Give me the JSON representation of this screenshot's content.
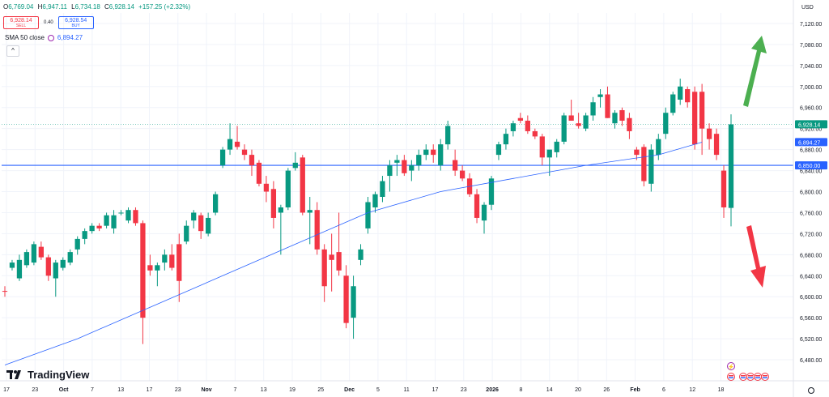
{
  "header": {
    "ohlc": [
      {
        "key": "O",
        "value": "6,769.04"
      },
      {
        "key": "H",
        "value": "6,947.11"
      },
      {
        "key": "L",
        "value": "6,734.18"
      },
      {
        "key": "C",
        "value": "6,928.14"
      },
      {
        "key": "",
        "value": "+157.25 (+2.32%)"
      }
    ],
    "sell_price": "6,928.14",
    "sell_label": "SELL",
    "spread": "0.40",
    "buy_price": "6,928.54",
    "buy_label": "BUY",
    "sma_label": "SMA 50 close",
    "sma_value": "6,894.27",
    "collapse_glyph": "^",
    "currency": "USD",
    "brand": "TradingView"
  },
  "colors": {
    "up": "#089981",
    "down": "#f23645",
    "sma": "#2962ff",
    "hline": "#2962ff",
    "arrow_up": "#4caf50",
    "arrow_down": "#f23645"
  },
  "chart_data": {
    "type": "candlestick",
    "ylim": [
      6440,
      7140
    ],
    "y_ticks": [
      "7,120.00",
      "7,080.00",
      "7,040.00",
      "7,000.00",
      "6,960.00",
      "6,920.00",
      "6,880.00",
      "6,840.00",
      "6,800.00",
      "6,760.00",
      "6,720.00",
      "6,680.00",
      "6,640.00",
      "6,600.00",
      "6,560.00",
      "6,520.00",
      "6,480.00"
    ],
    "x_tick_labels": [
      "17",
      "23",
      "Oct",
      "7",
      "13",
      "17",
      "23",
      "Nov",
      "7",
      "13",
      "19",
      "25",
      "Dec",
      "5",
      "11",
      "17",
      "23",
      "2026",
      "8",
      "14",
      "20",
      "26",
      "Feb",
      "6",
      "12",
      "18"
    ],
    "horizontal_line": 6850.0,
    "price_labels": [
      {
        "text": "6,928.14",
        "value": 6928.14,
        "color": "#089981"
      },
      {
        "text": "6,894.27",
        "value": 6894.27,
        "color": "#2962ff"
      },
      {
        "text": "6,850.00",
        "value": 6850.0,
        "color": "#2962ff"
      }
    ],
    "candles": [
      [
        6611,
        6620,
        6600,
        6610
      ],
      [
        6655,
        6670,
        6650,
        6665
      ],
      [
        6635,
        6680,
        6630,
        6670
      ],
      [
        6660,
        6690,
        6655,
        6685
      ],
      [
        6665,
        6705,
        6660,
        6700
      ],
      [
        6695,
        6705,
        6670,
        6675
      ],
      [
        6675,
        6680,
        6630,
        6640
      ],
      [
        6635,
        6670,
        6600,
        6665
      ],
      [
        6655,
        6675,
        6650,
        6670
      ],
      [
        6665,
        6690,
        6660,
        6685
      ],
      [
        6690,
        6715,
        6680,
        6710
      ],
      [
        6710,
        6730,
        6700,
        6725
      ],
      [
        6725,
        6740,
        6720,
        6735
      ],
      [
        6735,
        6740,
        6725,
        6730
      ],
      [
        6735,
        6760,
        6730,
        6755
      ],
      [
        6730,
        6765,
        6720,
        6755
      ],
      [
        6760,
        6765,
        6755,
        6760
      ],
      [
        6745,
        6770,
        6740,
        6765
      ],
      [
        6765,
        6770,
        6735,
        6740
      ],
      [
        6740,
        6745,
        6510,
        6560
      ],
      [
        6660,
        6680,
        6640,
        6650
      ],
      [
        6650,
        6665,
        6620,
        6660
      ],
      [
        6665,
        6690,
        6650,
        6680
      ],
      [
        6680,
        6700,
        6650,
        6655
      ],
      [
        6700,
        6720,
        6590,
        6630
      ],
      [
        6705,
        6745,
        6700,
        6735
      ],
      [
        6745,
        6765,
        6730,
        6760
      ],
      [
        6755,
        6760,
        6710,
        6725
      ],
      [
        6720,
        6760,
        6715,
        6750
      ],
      [
        6760,
        6800,
        6755,
        6795
      ],
      [
        6850,
        6885,
        6845,
        6880
      ],
      [
        6880,
        6930,
        6870,
        6900
      ],
      [
        6895,
        6925,
        6880,
        6885
      ],
      [
        6880,
        6890,
        6860,
        6870
      ],
      [
        6870,
        6880,
        6830,
        6850
      ],
      [
        6855,
        6860,
        6810,
        6815
      ],
      [
        6815,
        6830,
        6780,
        6800
      ],
      [
        6805,
        6820,
        6730,
        6750
      ],
      [
        6760,
        6775,
        6680,
        6770
      ],
      [
        6770,
        6845,
        6765,
        6840
      ],
      [
        6845,
        6875,
        6840,
        6855
      ],
      [
        6865,
        6870,
        6755,
        6760
      ],
      [
        6760,
        6790,
        6700,
        6765
      ],
      [
        6765,
        6780,
        6680,
        6690
      ],
      [
        6690,
        6700,
        6590,
        6620
      ],
      [
        6680,
        6720,
        6610,
        6670
      ],
      [
        6685,
        6760,
        6640,
        6650
      ],
      [
        6640,
        6660,
        6540,
        6550
      ],
      [
        6560,
        6640,
        6520,
        6620
      ],
      [
        6670,
        6700,
        6660,
        6690
      ],
      [
        6730,
        6790,
        6720,
        6780
      ],
      [
        6770,
        6800,
        6760,
        6795
      ],
      [
        6790,
        6830,
        6780,
        6820
      ],
      [
        6830,
        6860,
        6800,
        6850
      ],
      [
        6855,
        6870,
        6830,
        6860
      ],
      [
        6860,
        6870,
        6830,
        6835
      ],
      [
        6840,
        6860,
        6820,
        6850
      ],
      [
        6850,
        6880,
        6840,
        6870
      ],
      [
        6870,
        6890,
        6860,
        6880
      ],
      [
        6880,
        6890,
        6855,
        6870
      ],
      [
        6850,
        6900,
        6840,
        6890
      ],
      [
        6890,
        6935,
        6880,
        6925
      ],
      [
        6860,
        6880,
        6830,
        6840
      ],
      [
        6840,
        6850,
        6820,
        6825
      ],
      [
        6825,
        6835,
        6790,
        6795
      ],
      [
        6795,
        6805,
        6740,
        6750
      ],
      [
        6745,
        6780,
        6720,
        6775
      ],
      [
        6775,
        6830,
        6765,
        6825
      ],
      [
        6870,
        6895,
        6860,
        6890
      ],
      [
        6890,
        6920,
        6880,
        6910
      ],
      [
        6915,
        6935,
        6905,
        6930
      ],
      [
        6940,
        6950,
        6930,
        6935
      ],
      [
        6935,
        6945,
        6910,
        6915
      ],
      [
        6915,
        6920,
        6900,
        6905
      ],
      [
        6905,
        6910,
        6850,
        6865
      ],
      [
        6865,
        6875,
        6830,
        6880
      ],
      [
        6875,
        6900,
        6865,
        6895
      ],
      [
        6895,
        6950,
        6890,
        6945
      ],
      [
        6945,
        6975,
        6935,
        6935
      ],
      [
        6930,
        6950,
        6920,
        6925
      ],
      [
        6920,
        6950,
        6915,
        6945
      ],
      [
        6945,
        6980,
        6935,
        6970
      ],
      [
        6980,
        6995,
        6960,
        6985
      ],
      [
        6985,
        7000,
        6940,
        6940
      ],
      [
        6930,
        6955,
        6920,
        6950
      ],
      [
        6955,
        6960,
        6925,
        6935
      ],
      [
        6940,
        6950,
        6900,
        6915
      ],
      [
        6880,
        6885,
        6860,
        6870
      ],
      [
        6885,
        6890,
        6810,
        6820
      ],
      [
        6815,
        6890,
        6800,
        6880
      ],
      [
        6870,
        6910,
        6860,
        6900
      ],
      [
        6910,
        6960,
        6900,
        6950
      ],
      [
        6950,
        6990,
        6945,
        6985
      ],
      [
        6975,
        7015,
        6965,
        7000
      ],
      [
        6995,
        7000,
        6960,
        6970
      ],
      [
        6990,
        7000,
        6880,
        6890
      ],
      [
        6990,
        7005,
        6870,
        6920
      ],
      [
        6920,
        6930,
        6880,
        6900
      ],
      [
        6910,
        6920,
        6860,
        6870
      ],
      [
        6840,
        6850,
        6750,
        6770
      ],
      [
        6769,
        6947,
        6734,
        6928
      ]
    ],
    "sma50": [
      [
        0,
        6470
      ],
      [
        10,
        6520
      ],
      [
        20,
        6580
      ],
      [
        30,
        6640
      ],
      [
        40,
        6700
      ],
      [
        50,
        6760
      ],
      [
        60,
        6800
      ],
      [
        70,
        6825
      ],
      [
        80,
        6850
      ],
      [
        90,
        6870
      ],
      [
        96,
        6894
      ]
    ]
  }
}
